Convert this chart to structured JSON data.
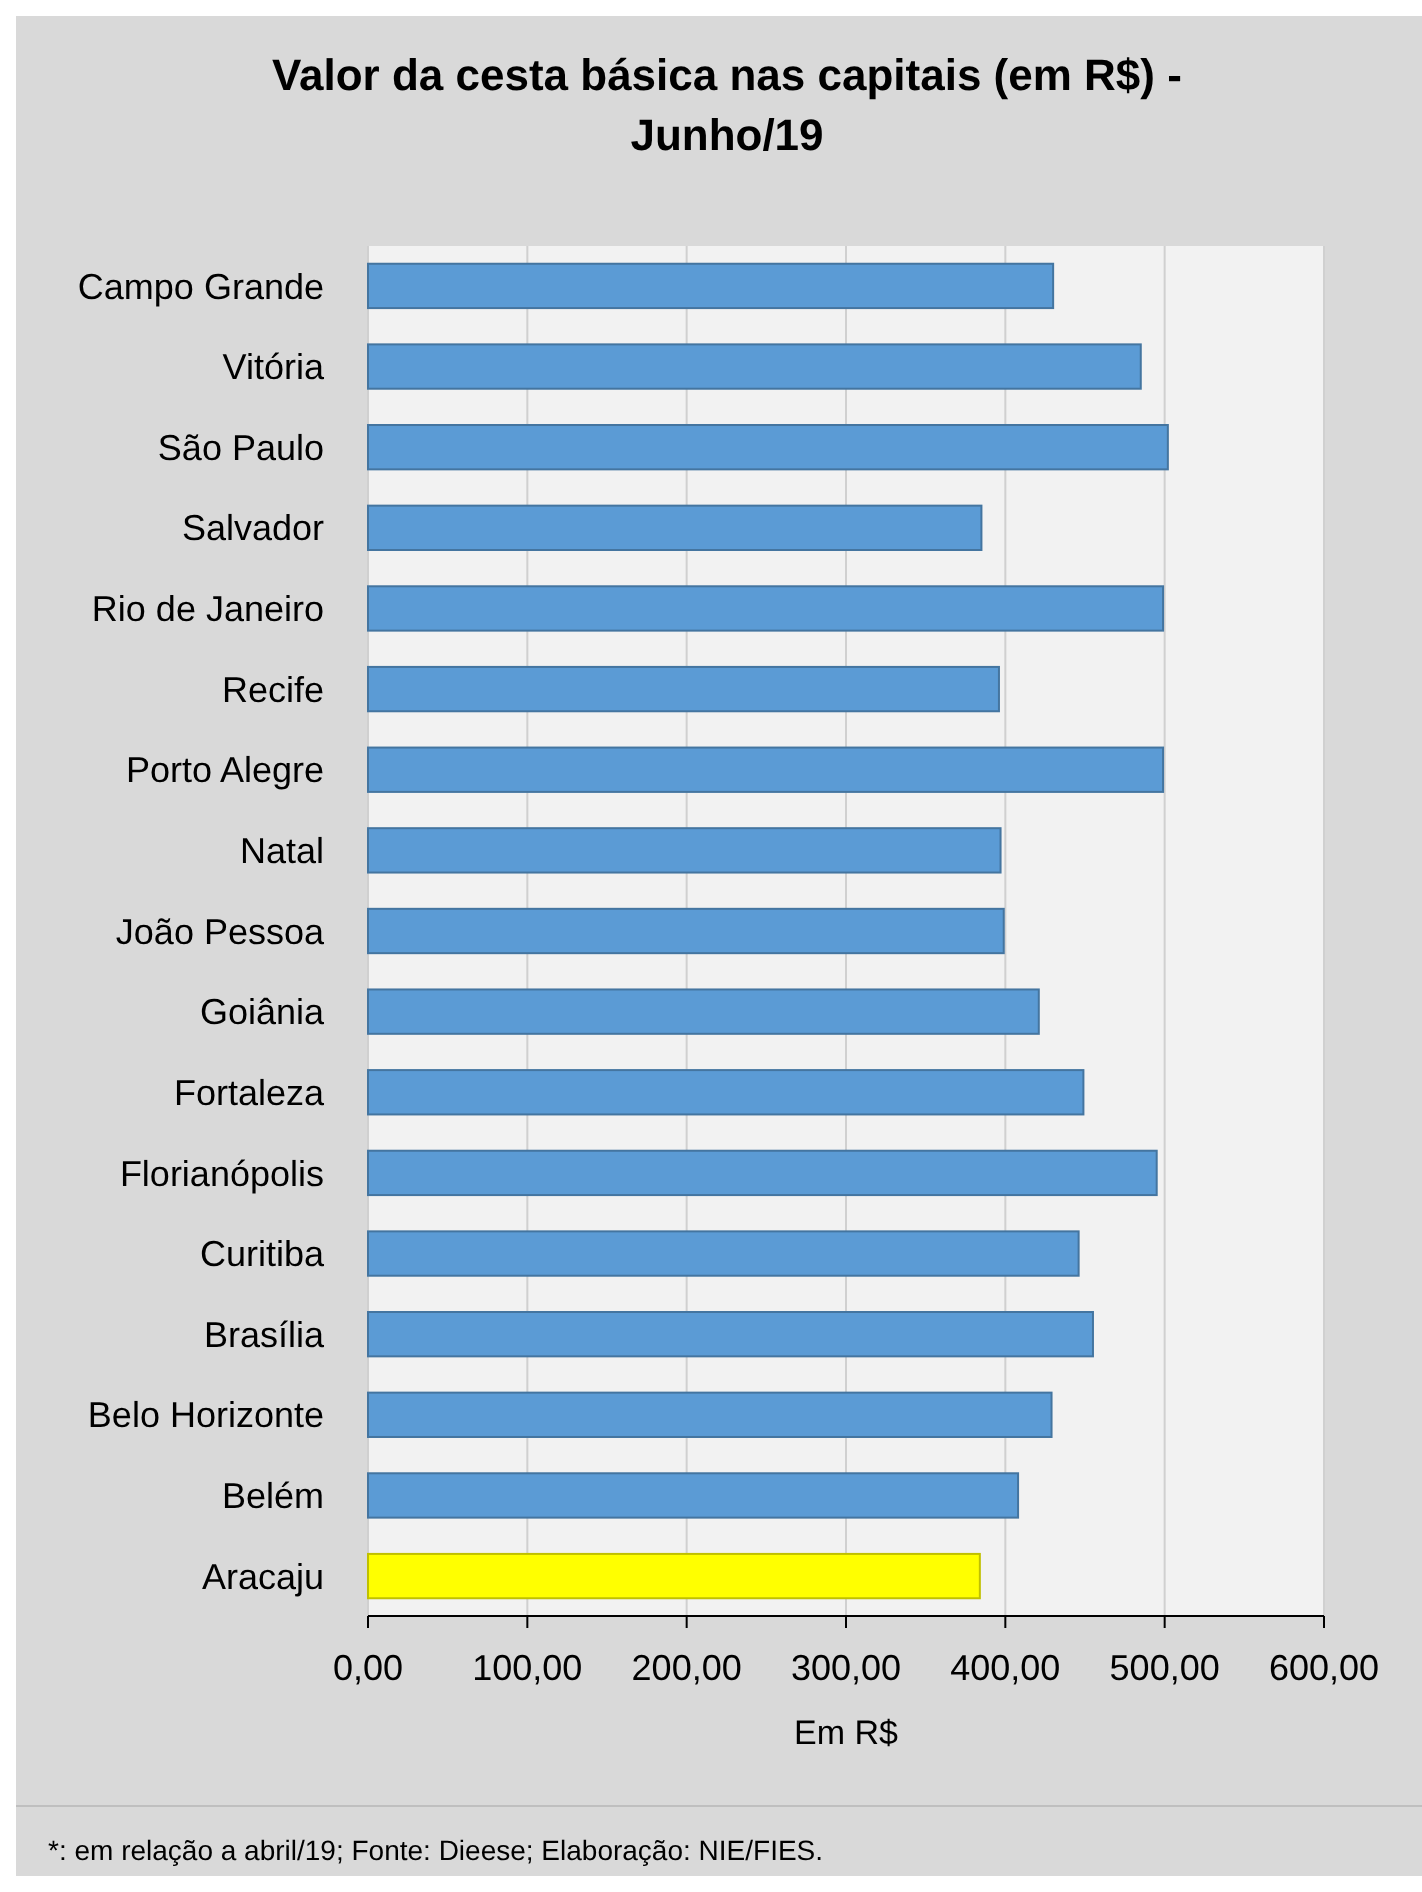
{
  "chart_data": {
    "type": "bar",
    "orientation": "horizontal",
    "title": "Valor da cesta básica nas capitais (em R$) - Junho/19",
    "xlabel": "Em R$",
    "categories": [
      "Campo Grande",
      "Vitória",
      "São Paulo",
      "Salvador",
      "Rio de Janeiro",
      "Recife",
      "Porto Alegre",
      "Natal",
      "João Pessoa",
      "Goiânia",
      "Fortaleza",
      "Florianópolis",
      "Curitiba",
      "Brasília",
      "Belo Horizonte",
      "Belém",
      "Aracaju"
    ],
    "values": [
      430,
      485,
      502,
      385,
      499,
      396,
      499,
      397,
      399,
      421,
      449,
      495,
      446,
      455,
      429,
      408,
      384
    ],
    "colors": [
      "#5b9bd5",
      "#5b9bd5",
      "#5b9bd5",
      "#5b9bd5",
      "#5b9bd5",
      "#5b9bd5",
      "#5b9bd5",
      "#5b9bd5",
      "#5b9bd5",
      "#5b9bd5",
      "#5b9bd5",
      "#5b9bd5",
      "#5b9bd5",
      "#5b9bd5",
      "#5b9bd5",
      "#5b9bd5",
      "#ffff00"
    ],
    "xlim": [
      0,
      600
    ],
    "xticks": [
      {
        "value": 0,
        "label": "0,00"
      },
      {
        "value": 100,
        "label": "100,00"
      },
      {
        "value": 200,
        "label": "200,00"
      },
      {
        "value": 300,
        "label": "300,00"
      },
      {
        "value": 400,
        "label": "400,00"
      },
      {
        "value": 500,
        "label": "500,00"
      },
      {
        "value": 600,
        "label": "600,00"
      }
    ],
    "grid": "x",
    "annotations": [
      "*: em relação a abril/19; Fonte: Dieese; Elaboração: NIE/FIES."
    ]
  }
}
